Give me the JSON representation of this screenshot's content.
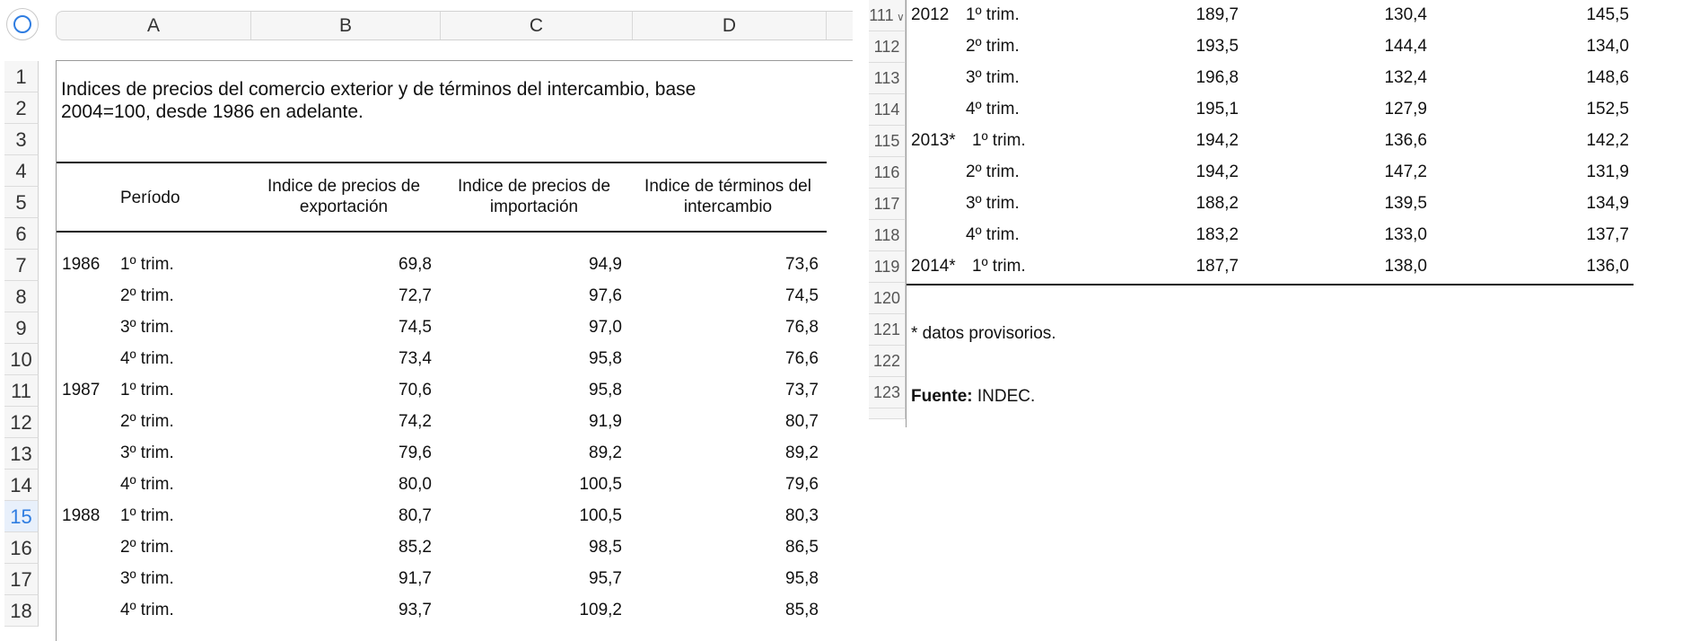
{
  "left": {
    "columns": [
      "A",
      "B",
      "C",
      "D"
    ],
    "row_numbers": [
      "1",
      "2",
      "3",
      "4",
      "5",
      "6",
      "7",
      "8",
      "9",
      "10",
      "11",
      "12",
      "13",
      "14",
      "15",
      "16",
      "17",
      "18"
    ],
    "selected_row": "15",
    "title_line1": "Indices de precios del comercio exterior y de términos del intercambio, base",
    "title_line2": "2004=100, desde 1986 en adelante.",
    "headers": {
      "periodo": "Período",
      "export_l1": "Indice de precios de",
      "export_l2": "exportación",
      "import_l1": "Indice de precios de",
      "import_l2": "importación",
      "terms_l1": "Indice de términos del",
      "terms_l2": "intercambio"
    },
    "rows": [
      {
        "row": "7",
        "year": "1986",
        "trim": "1º trim.",
        "exp": "69,8",
        "imp": "94,9",
        "terms": "73,6"
      },
      {
        "row": "8",
        "year": "",
        "trim": "2º trim.",
        "exp": "72,7",
        "imp": "97,6",
        "terms": "74,5"
      },
      {
        "row": "9",
        "year": "",
        "trim": "3º trim.",
        "exp": "74,5",
        "imp": "97,0",
        "terms": "76,8"
      },
      {
        "row": "10",
        "year": "",
        "trim": "4º trim.",
        "exp": "73,4",
        "imp": "95,8",
        "terms": "76,6"
      },
      {
        "row": "11",
        "year": "1987",
        "trim": "1º trim.",
        "exp": "70,6",
        "imp": "95,8",
        "terms": "73,7"
      },
      {
        "row": "12",
        "year": "",
        "trim": "2º trim.",
        "exp": "74,2",
        "imp": "91,9",
        "terms": "80,7"
      },
      {
        "row": "13",
        "year": "",
        "trim": "3º trim.",
        "exp": "79,6",
        "imp": "89,2",
        "terms": "89,2"
      },
      {
        "row": "14",
        "year": "",
        "trim": "4º trim.",
        "exp": "80,0",
        "imp": "100,5",
        "terms": "79,6"
      },
      {
        "row": "15",
        "year": "1988",
        "trim": "1º trim.",
        "exp": "80,7",
        "imp": "100,5",
        "terms": "80,3"
      },
      {
        "row": "16",
        "year": "",
        "trim": "2º trim.",
        "exp": "85,2",
        "imp": "98,5",
        "terms": "86,5"
      },
      {
        "row": "17",
        "year": "",
        "trim": "3º trim.",
        "exp": "91,7",
        "imp": "95,7",
        "terms": "95,8"
      },
      {
        "row": "18",
        "year": "",
        "trim": "4º trim.",
        "exp": "93,7",
        "imp": "109,2",
        "terms": "85,8"
      }
    ]
  },
  "right": {
    "rows": [
      {
        "row": "111",
        "year": "2012",
        "trim": "1º trim.",
        "exp": "189,7",
        "imp": "130,4",
        "terms": "145,5"
      },
      {
        "row": "112",
        "year": "",
        "trim": "2º trim.",
        "exp": "193,5",
        "imp": "144,4",
        "terms": "134,0"
      },
      {
        "row": "113",
        "year": "",
        "trim": "3º trim.",
        "exp": "196,8",
        "imp": "132,4",
        "terms": "148,6"
      },
      {
        "row": "114",
        "year": "",
        "trim": "4º trim.",
        "exp": "195,1",
        "imp": "127,9",
        "terms": "152,5"
      },
      {
        "row": "115",
        "year": "2013*",
        "trim": "1º trim.",
        "exp": "194,2",
        "imp": "136,6",
        "terms": "142,2"
      },
      {
        "row": "116",
        "year": "",
        "trim": "2º trim.",
        "exp": "194,2",
        "imp": "147,2",
        "terms": "131,9"
      },
      {
        "row": "117",
        "year": "",
        "trim": "3º trim.",
        "exp": "188,2",
        "imp": "139,5",
        "terms": "134,9"
      },
      {
        "row": "118",
        "year": "",
        "trim": "4º trim.",
        "exp": "183,2",
        "imp": "133,0",
        "terms": "137,7"
      },
      {
        "row": "119",
        "year": "2014*",
        "trim": "1º trim.",
        "exp": "187,7",
        "imp": "138,0",
        "terms": "136,0"
      }
    ],
    "extra_rows": [
      "120",
      "121",
      "122",
      "123"
    ],
    "footnote": "* datos provisorios.",
    "source_label": "Fuente:",
    "source_value": " INDEC.",
    "chevron_icon": "chevron-down-icon"
  }
}
